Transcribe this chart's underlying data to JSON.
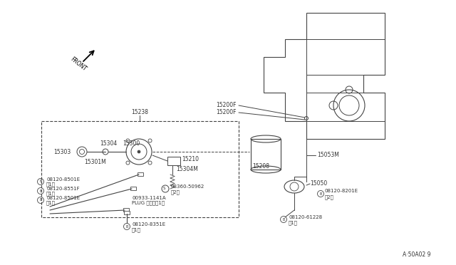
{
  "bg_color": "#ffffff",
  "lc": "#444444",
  "tc": "#333333",
  "diagram_id": "A·50A02 9",
  "front_label": "FRONT",
  "parts": {
    "15200F_1": "15200F",
    "15200F_2": "15200F",
    "15238": "15238",
    "15304": "15304",
    "15300": "15300",
    "15303": "15303",
    "15301M": "15301M",
    "15210": "15210",
    "15304M": "15304M",
    "08120_8501E": "08120-8501E",
    "08120_8551F": "08120-8551F",
    "08360_50962": "08360-50962",
    "00933_1141A": "00933-1141A",
    "plug_label": "PLUG プラグ（1）",
    "08120_8351E": "08120-8351E",
    "15208": "15208",
    "15053M": "15053M",
    "15050": "15050",
    "08120_8201E": "08120-8201E",
    "08120_61228": "08120-61228",
    "qty_1": "（1）",
    "qty_2": "（2）"
  }
}
